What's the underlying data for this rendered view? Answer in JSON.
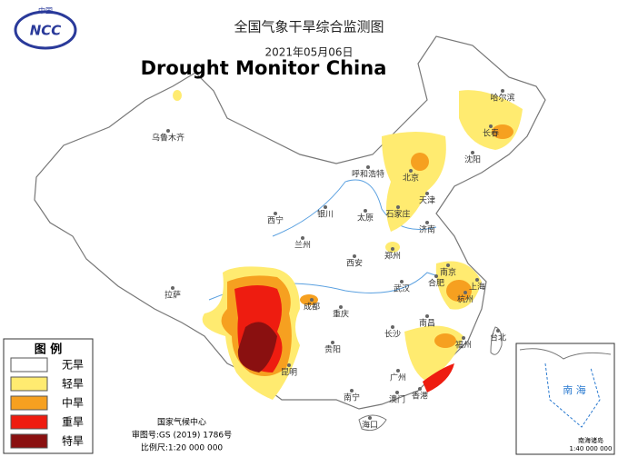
{
  "header": {
    "logo_text": "NCC",
    "logo_caption": "中国",
    "title": "全国气象干旱综合监测图",
    "date": "2021年05月06日",
    "overlay_title": "Drought Monitor China"
  },
  "legend": {
    "title": "图 例",
    "items": [
      "无旱",
      "轻旱",
      "中旱",
      "重旱",
      "特旱"
    ]
  },
  "cities": [
    "哈尔滨",
    "长春",
    "沈阳",
    "乌鲁木齐",
    "呼和浩特",
    "北京",
    "天津",
    "石家庄",
    "太原",
    "银川",
    "西宁",
    "兰州",
    "济南",
    "郑州",
    "西安",
    "拉萨",
    "成都",
    "重庆",
    "武汉",
    "合肥",
    "南京",
    "上海",
    "杭州",
    "长沙",
    "南昌",
    "福州",
    "贵阳",
    "昆明",
    "南宁",
    "广州",
    "香港",
    "澳门",
    "台北",
    "海口"
  ],
  "footer": {
    "agency": "国家气候中心",
    "approval": "审图号:GS (2019) 1786号",
    "scale": "比例尺:1:20 000 000"
  },
  "inset": {
    "sea": "南 海",
    "caption": "南海诸岛",
    "scale": "1:40 000 000"
  }
}
